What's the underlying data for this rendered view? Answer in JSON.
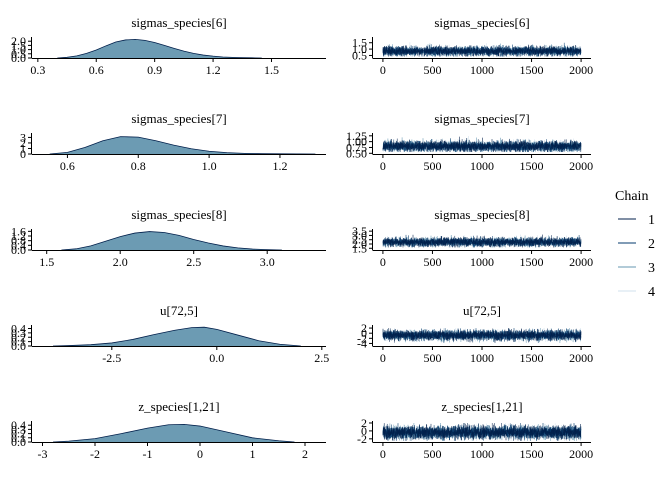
{
  "legend": {
    "title": "Chain",
    "entries": [
      {
        "label": "1",
        "color": "#011f4b"
      },
      {
        "label": "2",
        "color": "#03396c"
      },
      {
        "label": "3",
        "color": "#6497b1"
      },
      {
        "label": "4",
        "color": "#d1e1ec"
      }
    ]
  },
  "colors": {
    "density_fill": "#6c9bb3",
    "density_line": "#011f4b",
    "axis": "#000000"
  },
  "chart_data": [
    {
      "type": "area",
      "panel": "density",
      "title": "sigmas_species[6]",
      "xlim": [
        0.27,
        1.78
      ],
      "ylim": [
        0,
        2.5
      ],
      "xticks": [
        0.3,
        0.6,
        0.9,
        1.2,
        1.5
      ],
      "xticklabels": [
        "0.3",
        "0.6",
        "0.9",
        "1.2",
        "1.5"
      ],
      "yticks": [
        0.0,
        0.5,
        1.0,
        1.5,
        2.0
      ],
      "yticklabels": [
        "0.0",
        "0.5",
        "1.0",
        "1.5",
        "2.0"
      ],
      "x": [
        0.4,
        0.45,
        0.5,
        0.55,
        0.6,
        0.65,
        0.7,
        0.75,
        0.8,
        0.85,
        0.9,
        0.95,
        1.0,
        1.05,
        1.1,
        1.15,
        1.2,
        1.25,
        1.3,
        1.35,
        1.4,
        1.45
      ],
      "y": [
        0.0,
        0.08,
        0.25,
        0.55,
        0.95,
        1.45,
        1.9,
        2.15,
        2.22,
        2.1,
        1.85,
        1.5,
        1.15,
        0.82,
        0.55,
        0.35,
        0.22,
        0.12,
        0.07,
        0.04,
        0.02,
        0.0
      ]
    },
    {
      "type": "line",
      "panel": "trace",
      "title": "sigmas_species[6]",
      "xlim": [
        -100,
        2100
      ],
      "ylim": [
        0.3,
        1.95
      ],
      "xticks": [
        0,
        500,
        1000,
        1500,
        2000
      ],
      "xticklabels": [
        "0",
        "500",
        "1000",
        "1500",
        "2000"
      ],
      "yticks": [
        0.5,
        1.0,
        1.5
      ],
      "yticklabels": [
        "0.5",
        "1.0",
        "1.5"
      ],
      "n_iter": 2000,
      "center": 0.84,
      "spread": 0.18,
      "min": 0.42,
      "max": 1.55
    },
    {
      "type": "area",
      "panel": "density",
      "title": "sigmas_species[7]",
      "xlim": [
        0.5,
        1.33
      ],
      "ylim": [
        0,
        3.8
      ],
      "xticks": [
        0.6,
        0.8,
        1.0,
        1.2
      ],
      "xticklabels": [
        "0.6",
        "0.8",
        "1.0",
        "1.2"
      ],
      "yticks": [
        0,
        1,
        2,
        3
      ],
      "yticklabels": [
        "0",
        "1",
        "2",
        "3"
      ],
      "x": [
        0.55,
        0.6,
        0.65,
        0.7,
        0.75,
        0.8,
        0.85,
        0.9,
        0.95,
        1.0,
        1.05,
        1.1,
        1.15,
        1.2,
        1.25,
        1.3
      ],
      "y": [
        0.0,
        0.3,
        1.2,
        2.4,
        3.15,
        3.05,
        2.4,
        1.6,
        0.95,
        0.5,
        0.25,
        0.12,
        0.06,
        0.03,
        0.02,
        0.0
      ]
    },
    {
      "type": "line",
      "panel": "trace",
      "title": "sigmas_species[7]",
      "xlim": [
        -100,
        2100
      ],
      "ylim": [
        0.47,
        1.37
      ],
      "xticks": [
        0,
        500,
        1000,
        1500,
        2000
      ],
      "xticklabels": [
        "0",
        "500",
        "1000",
        "1500",
        "2000"
      ],
      "yticks": [
        0.5,
        0.75,
        1.0,
        1.25
      ],
      "yticklabels": [
        "0.50",
        "0.75",
        "1.00",
        "1.25"
      ],
      "n_iter": 2000,
      "center": 0.8,
      "spread": 0.11,
      "min": 0.56,
      "max": 1.25
    },
    {
      "type": "area",
      "panel": "density",
      "title": "sigmas_species[8]",
      "xlim": [
        1.4,
        3.4
      ],
      "ylim": [
        0,
        1.8
      ],
      "xticks": [
        1.5,
        2.0,
        2.5,
        3.0
      ],
      "xticklabels": [
        "1.5",
        "2.0",
        "2.5",
        "3.0"
      ],
      "yticks": [
        0.0,
        0.4,
        0.8,
        1.2,
        1.6
      ],
      "yticklabels": [
        "0.0",
        "0.4",
        "0.8",
        "1.2",
        "1.6"
      ],
      "x": [
        1.6,
        1.7,
        1.8,
        1.9,
        2.0,
        2.1,
        2.2,
        2.3,
        2.4,
        2.5,
        2.6,
        2.7,
        2.8,
        2.9,
        3.0,
        3.1
      ],
      "y": [
        0.0,
        0.1,
        0.35,
        0.75,
        1.15,
        1.45,
        1.58,
        1.5,
        1.25,
        0.9,
        0.6,
        0.35,
        0.18,
        0.08,
        0.03,
        0.0
      ]
    },
    {
      "type": "line",
      "panel": "trace",
      "title": "sigmas_species[8]",
      "xlim": [
        -100,
        2100
      ],
      "ylim": [
        1.3,
        3.75
      ],
      "xticks": [
        0,
        500,
        1000,
        1500,
        2000
      ],
      "xticklabels": [
        "0",
        "500",
        "1000",
        "1500",
        "2000"
      ],
      "yticks": [
        1.5,
        2.0,
        2.5,
        3.0,
        3.5
      ],
      "yticklabels": [
        "1.5",
        "2.0",
        "2.5",
        "3.0",
        "3.5"
      ],
      "n_iter": 2000,
      "center": 2.22,
      "spread": 0.25,
      "min": 1.6,
      "max": 3.1
    },
    {
      "type": "area",
      "panel": "density",
      "title": "u[72,5]",
      "xlim": [
        -4.4,
        2.6
      ],
      "ylim": [
        0,
        0.48
      ],
      "xticks": [
        -2.5,
        0.0,
        2.5
      ],
      "xticklabels": [
        "-2.5",
        "0.0",
        "2.5"
      ],
      "yticks": [
        0.0,
        0.1,
        0.2,
        0.3,
        0.4
      ],
      "yticklabels": [
        "0.0",
        "0.1",
        "0.2",
        "0.3",
        "0.4"
      ],
      "x": [
        -3.9,
        -3.5,
        -3.0,
        -2.5,
        -2.0,
        -1.5,
        -1.0,
        -0.6,
        -0.3,
        0.0,
        0.5,
        1.0,
        1.5,
        2.0
      ],
      "y": [
        0.0,
        0.01,
        0.03,
        0.07,
        0.15,
        0.26,
        0.36,
        0.42,
        0.43,
        0.38,
        0.25,
        0.12,
        0.04,
        0.0
      ]
    },
    {
      "type": "line",
      "panel": "trace",
      "title": "u[72,5]",
      "xlim": [
        -100,
        2100
      ],
      "ylim": [
        -5.0,
        3.2
      ],
      "xticks": [
        0,
        500,
        1000,
        1500,
        2000
      ],
      "xticklabels": [
        "0",
        "500",
        "1000",
        "1500",
        "2000"
      ],
      "yticks": [
        -4,
        -2,
        0,
        2
      ],
      "yticklabels": [
        "-4",
        "-2",
        "0",
        "2"
      ],
      "n_iter": 2000,
      "center": -0.8,
      "spread": 0.95,
      "min": -3.8,
      "max": 2.0
    },
    {
      "type": "area",
      "panel": "density",
      "title": "z_species[1,21]",
      "xlim": [
        -3.2,
        2.4
      ],
      "ylim": [
        0,
        0.5
      ],
      "xticks": [
        -3,
        -2,
        -1,
        0,
        1,
        2
      ],
      "xticklabels": [
        "-3",
        "-2",
        "-1",
        "0",
        "1",
        "2"
      ],
      "yticks": [
        0.0,
        0.1,
        0.2,
        0.3,
        0.4
      ],
      "yticklabels": [
        "0.0",
        "0.1",
        "0.2",
        "0.3",
        "0.4"
      ],
      "x": [
        -2.8,
        -2.5,
        -2.0,
        -1.5,
        -1.0,
        -0.6,
        -0.3,
        0.0,
        0.5,
        1.0,
        1.5,
        1.8
      ],
      "y": [
        0.0,
        0.02,
        0.08,
        0.2,
        0.33,
        0.41,
        0.42,
        0.38,
        0.24,
        0.1,
        0.03,
        0.0
      ]
    },
    {
      "type": "line",
      "panel": "trace",
      "title": "z_species[1,21]",
      "xlim": [
        -100,
        2100
      ],
      "ylim": [
        -2.8,
        2.5
      ],
      "xticks": [
        0,
        500,
        1000,
        1500,
        2000
      ],
      "xticklabels": [
        "0",
        "500",
        "1000",
        "1500",
        "2000"
      ],
      "yticks": [
        -2,
        0,
        2
      ],
      "yticklabels": [
        "-2",
        "0",
        "2"
      ],
      "n_iter": 2000,
      "center": -0.4,
      "spread": 0.8,
      "min": -2.5,
      "max": 2.0
    }
  ]
}
